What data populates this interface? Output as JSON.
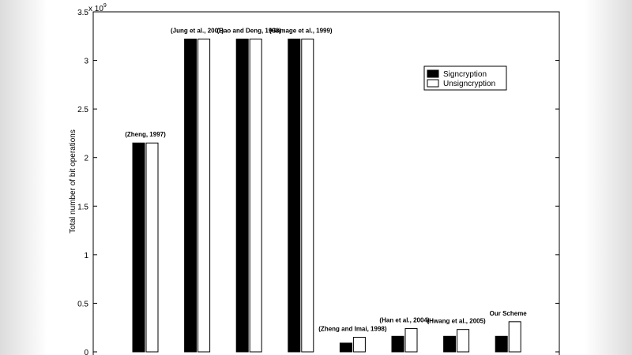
{
  "chart_data": {
    "type": "bar",
    "ylabel": "Total number of bit operations",
    "exponent_label": "x 10",
    "exponent_power": "9",
    "ylim": [
      0,
      3.5
    ],
    "yticks": [
      0,
      0.5,
      1,
      1.5,
      2,
      2.5,
      3,
      3.5
    ],
    "ytick_labels": [
      "0",
      "0.5",
      "1",
      "1.5",
      "2",
      "2.5",
      "3",
      "3.5"
    ],
    "grid": false,
    "legend_position": "top-right",
    "categories": [
      "(Zheng, 1997)",
      "(Jung et al., 2001)",
      "(Bao and Deng, 1998)",
      "(Gamage et al., 1999)",
      "(Zheng and Imai, 1998)",
      "(Han et al., 2004)",
      "(Hwang et al., 2005)",
      "Our Scheme"
    ],
    "series": [
      {
        "name": "Signcryption",
        "color": "#000000",
        "values": [
          2.15,
          3.22,
          3.22,
          3.22,
          0.09,
          0.16,
          0.16,
          0.16
        ]
      },
      {
        "name": "Unsigncryption",
        "color": "#ffffff",
        "values": [
          2.15,
          3.22,
          3.22,
          3.22,
          0.15,
          0.24,
          0.23,
          0.31
        ]
      }
    ]
  }
}
